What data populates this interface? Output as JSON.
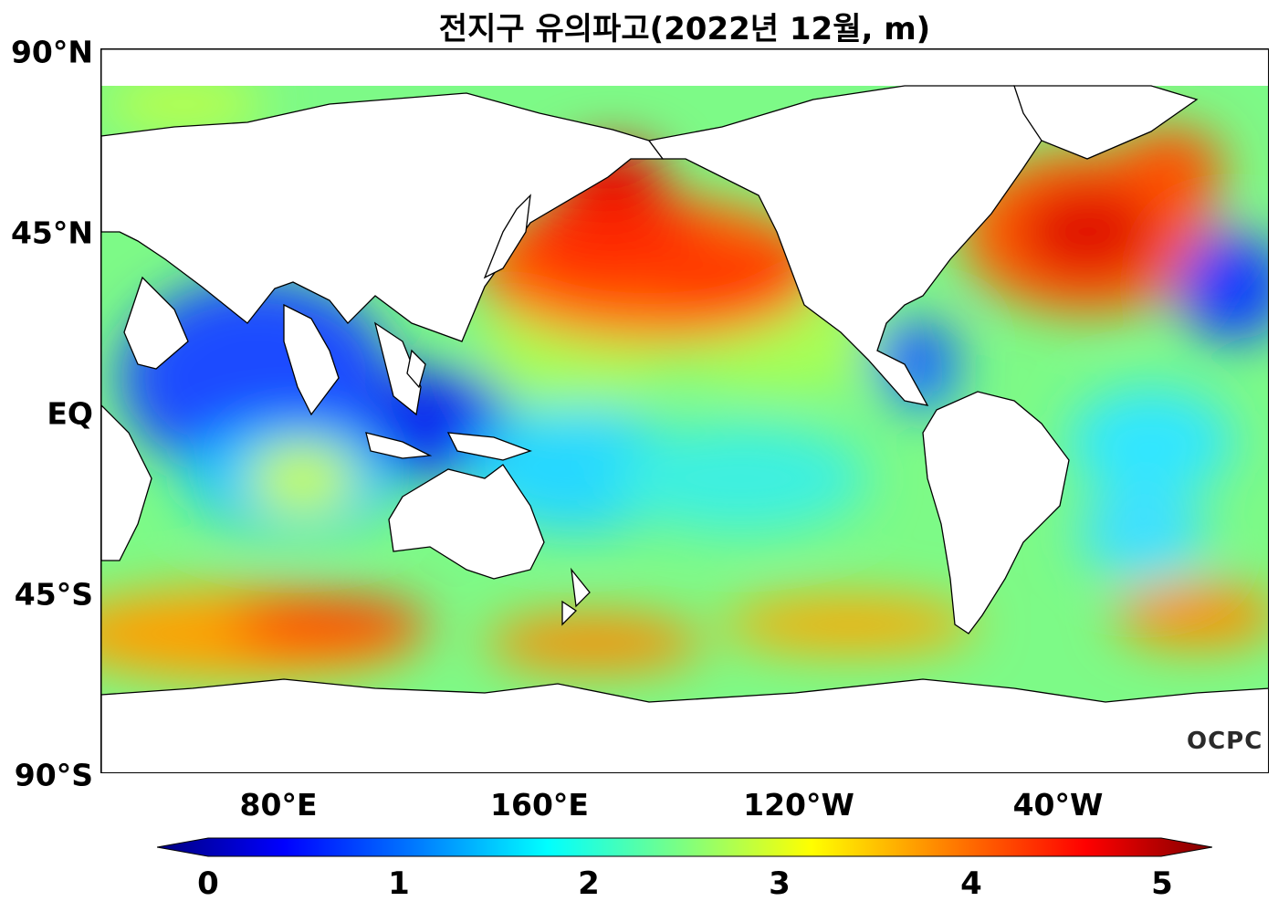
{
  "title": "전지구 유의파고(2022년 12월, m)",
  "watermark": "OCPC",
  "lat_labels": [
    "90°N",
    "45°N",
    "EQ",
    "45°S",
    "90°S"
  ],
  "lon_labels": [
    "80°E",
    "160°E",
    "120°W",
    "40°W"
  ],
  "colorbar": {
    "ticks": [
      "0",
      "1",
      "2",
      "3",
      "4",
      "5"
    ],
    "min": 0,
    "max": 5,
    "colors": [
      "#00007f",
      "#0000ff",
      "#007fff",
      "#00ffff",
      "#7fff7f",
      "#ffff00",
      "#ff7f00",
      "#ff0000",
      "#7f0000"
    ]
  }
}
